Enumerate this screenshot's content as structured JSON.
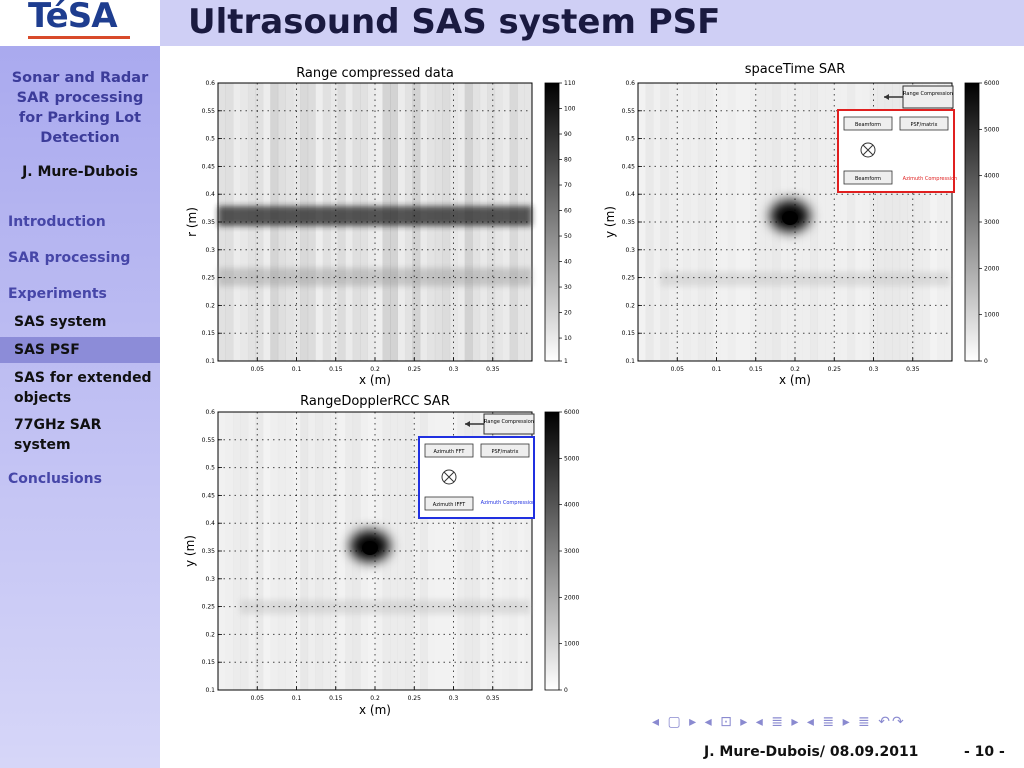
{
  "header": {
    "logo_text": "TéSA",
    "title": "Ultrasound SAS system PSF"
  },
  "sidebar": {
    "talk_title": "Sonar and Radar SAR processing for Parking Lot Detection",
    "author": "J. Mure-Dubois",
    "items": [
      {
        "label": "Introduction"
      },
      {
        "label": "SAR processing"
      },
      {
        "label": "Experiments"
      },
      {
        "label": "SAS system"
      },
      {
        "label": "SAS PSF",
        "active": true
      },
      {
        "label": "SAS for extended objects"
      },
      {
        "label": "77GHz SAR system"
      },
      {
        "label": "Conclusions"
      }
    ]
  },
  "chart_data": [
    {
      "type": "heatmap",
      "title": "Range compressed data",
      "xlabel": "x (m)",
      "ylabel": "r (m)",
      "xlim": [
        0,
        0.4
      ],
      "ylim": [
        0.1,
        0.6
      ],
      "xticks": [
        "0.05",
        "0.1",
        "0.15",
        "0.2",
        "0.25",
        "0.3",
        "0.35"
      ],
      "yticks": [
        "0.6",
        "0.55",
        "0.5",
        "0.45",
        "0.4",
        "0.35",
        "0.3",
        "0.25",
        "0.2",
        "0.15",
        "0.1"
      ],
      "colorbar": [
        1,
        10,
        20,
        30,
        40,
        50,
        60,
        70,
        80,
        90,
        100,
        110
      ],
      "grid": true,
      "colormap": "gray_reversed"
    },
    {
      "type": "heatmap",
      "title": "spaceTime SAR",
      "xlabel": "x (m)",
      "ylabel": "y (m)",
      "xlim": [
        0,
        0.4
      ],
      "ylim": [
        0.1,
        0.6
      ],
      "xticks": [
        "0.05",
        "0.1",
        "0.15",
        "0.2",
        "0.25",
        "0.3",
        "0.35"
      ],
      "yticks": [
        "0.6",
        "0.55",
        "0.5",
        "0.45",
        "0.4",
        "0.35",
        "0.3",
        "0.25",
        "0.2",
        "0.15",
        "0.1"
      ],
      "colorbar": [
        0,
        1000,
        2000,
        3000,
        4000,
        5000,
        6000
      ],
      "grid": true,
      "colormap": "gray_reversed",
      "inset": {
        "range_box": "Range Compression",
        "blocks": [
          "Beamform",
          "PSF/matrix",
          "Beamform"
        ],
        "caption": "Azimuth Compression",
        "color": "#e02020"
      }
    },
    {
      "type": "heatmap",
      "title": "RangeDopplerRCC SAR",
      "xlabel": "x (m)",
      "ylabel": "y (m)",
      "xlim": [
        0,
        0.4
      ],
      "ylim": [
        0.1,
        0.6
      ],
      "xticks": [
        "0.05",
        "0.1",
        "0.15",
        "0.2",
        "0.25",
        "0.3",
        "0.35"
      ],
      "yticks": [
        "0.6",
        "0.55",
        "0.5",
        "0.45",
        "0.4",
        "0.35",
        "0.3",
        "0.25",
        "0.2",
        "0.15",
        "0.1"
      ],
      "colorbar": [
        0,
        1000,
        2000,
        3000,
        4000,
        5000,
        6000
      ],
      "grid": true,
      "colormap": "gray_reversed",
      "inset": {
        "range_box": "Range Compression",
        "blocks": [
          "Azimuth FFT",
          "PSF/matrix",
          "Azimuth IFFT"
        ],
        "caption": "Azimuth Compression",
        "color": "#2030e0"
      }
    }
  ],
  "footer": {
    "nav_symbols": "◂ ▢ ▸ ◂ ⊡ ▸ ◂ ≣ ▸ ◂ ≣ ▸ ≣ ↶↷",
    "author_date": "J. Mure-Dubois/ 08.09.2011",
    "page": "- 10 -"
  }
}
